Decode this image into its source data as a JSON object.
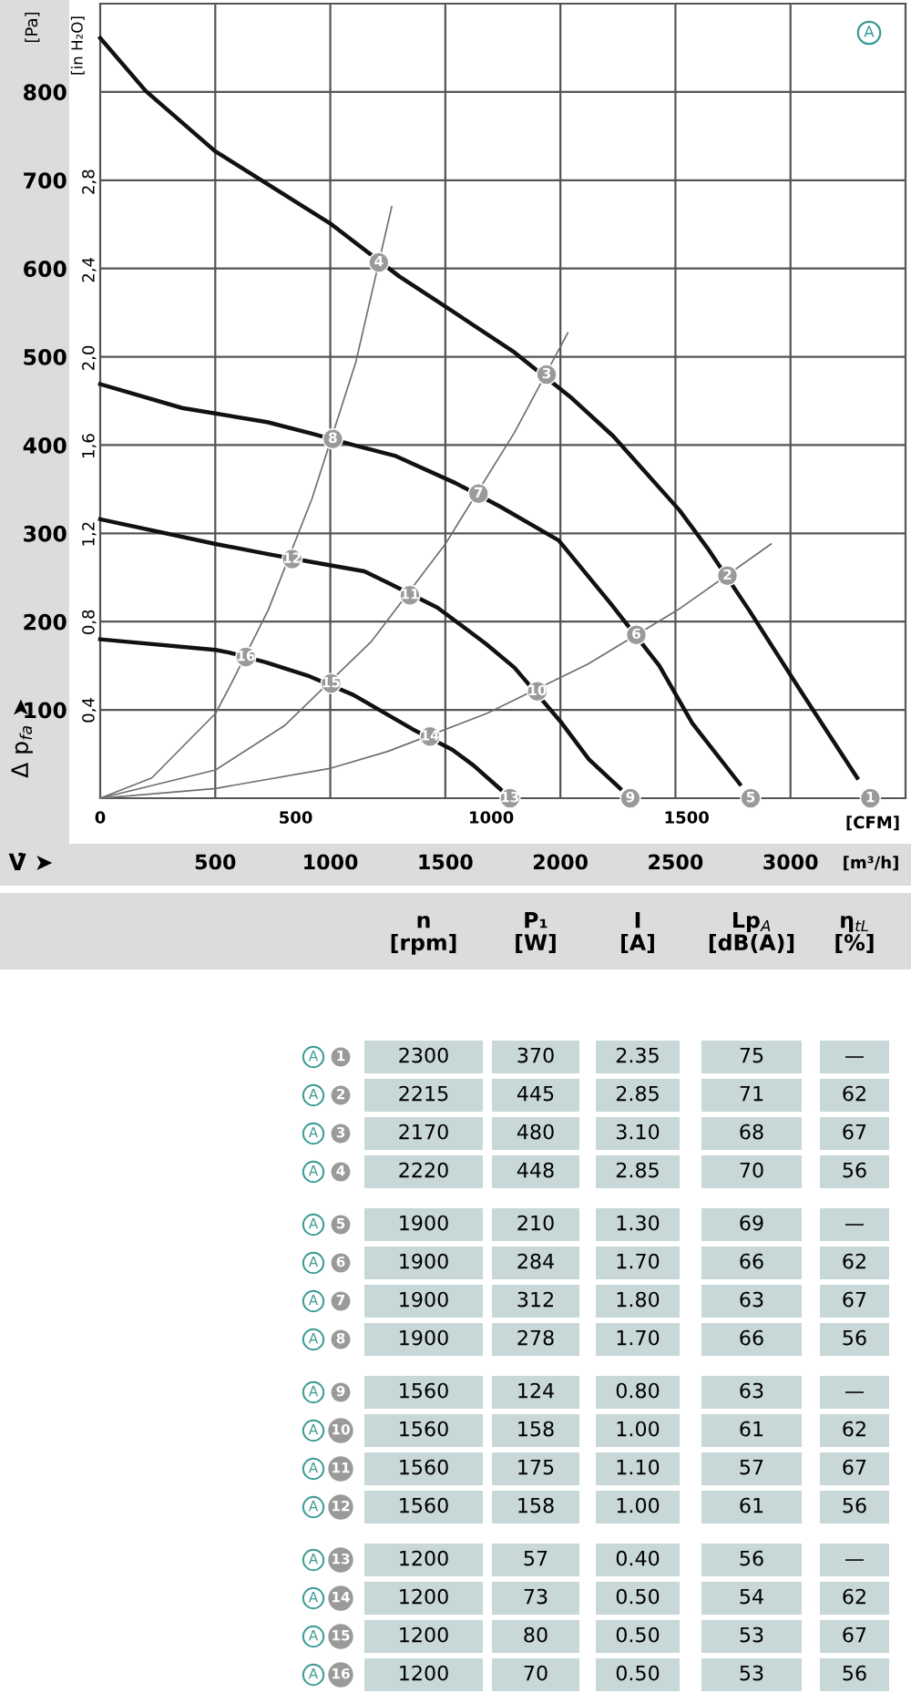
{
  "chart_data": [
    {
      "type": "line",
      "xlabel": "V̇ ➤",
      "ylabel": "Δ p$_{fa}$ ➤",
      "y2label": "[in H₂O]",
      "x2label": "[CFM]",
      "annotations": [
        "[Pa]",
        "[m³/h]",
        "A",
        {
          "text": "1",
          "x": 3347,
          "y": 0
        },
        {
          "text": "2",
          "x": 2726,
          "y": 252
        },
        {
          "text": "3",
          "x": 1940,
          "y": 480
        },
        {
          "text": "4",
          "x": 1211,
          "y": 607
        },
        {
          "text": "5",
          "x": 2827,
          "y": 0
        },
        {
          "text": "6",
          "x": 2330,
          "y": 185
        },
        {
          "text": "7",
          "x": 1644,
          "y": 345
        },
        {
          "text": "8",
          "x": 1011,
          "y": 407
        },
        {
          "text": "9",
          "x": 2304,
          "y": 0
        },
        {
          "text": "10",
          "x": 1900,
          "y": 121
        },
        {
          "text": "11",
          "x": 1346,
          "y": 230
        },
        {
          "text": "12",
          "x": 834,
          "y": 271
        },
        {
          "text": "13",
          "x": 1781,
          "y": 0
        },
        {
          "text": "14",
          "x": 1433,
          "y": 70
        },
        {
          "text": "15",
          "x": 1003,
          "y": 130
        },
        {
          "text": "16",
          "x": 633,
          "y": 160
        }
      ],
      "xlim": [
        0,
        3500
      ],
      "xticks": [
        500,
        1000,
        1500,
        2000,
        2500,
        3000
      ],
      "ylim": [
        0,
        900
      ],
      "yticks": [
        100,
        200,
        300,
        400,
        500,
        600,
        700,
        800
      ],
      "y2lim": [
        0,
        3.61
      ],
      "y2ticks": [
        {
          "value": 0.4,
          "label": "0,4"
        },
        {
          "value": 0.8,
          "label": "0,8"
        },
        {
          "value": 1.2,
          "label": "1,2"
        },
        {
          "value": 1.6,
          "label": "1,6"
        },
        {
          "value": 2.0,
          "label": "2,0"
        },
        {
          "value": 2.4,
          "label": "2,4"
        },
        {
          "value": 2.8,
          "label": "2,8"
        }
      ],
      "x2lim": [
        0,
        2060
      ],
      "x2ticks": [
        0,
        500,
        1000,
        1500
      ],
      "grid": true,
      "series": [
        {
          "color": "#111111",
          "x": [
            0,
            198,
            499,
            1005,
            1120,
            1300,
            1500,
            1800,
            2050,
            2230,
            2518,
            2640,
            2820,
            3048,
            3290
          ],
          "values": [
            861,
            801,
            733,
            650,
            627,
            591,
            557,
            505,
            453,
            410,
            326,
            283,
            213,
            120,
            23
          ]
        },
        {
          "color": "#111111",
          "x": [
            0,
            356,
            726,
            920,
            1100,
            1280,
            1544,
            1740,
            1993,
            2220,
            2430,
            2573,
            2780
          ],
          "values": [
            469,
            442,
            426,
            413,
            400,
            388,
            357,
            330,
            292,
            220,
            150,
            85,
            16
          ]
        },
        {
          "color": "#111111",
          "x": [
            0,
            501,
            740,
            930,
            1148,
            1250,
            1465,
            1676,
            1800,
            2000,
            2124,
            2260
          ],
          "values": [
            316,
            288,
            276,
            267,
            257,
            244,
            216,
            175,
            148,
            87,
            44,
            11
          ]
        },
        {
          "color": "#111111",
          "x": [
            0,
            501,
            560,
            720,
            900,
            1100,
            1359,
            1530,
            1623,
            1740
          ],
          "values": [
            180,
            168,
            165,
            154,
            139,
            117,
            78,
            55,
            37,
            10
          ]
        },
        {
          "color": "#6e6e6e",
          "x": [
            0,
            224,
            501,
            560,
            730,
            920,
            1110,
            1267
          ],
          "values": [
            0,
            23,
            96,
            125,
            213,
            339,
            493,
            670
          ]
        },
        {
          "color": "#6e6e6e",
          "x": [
            0,
            501,
            800,
            1180,
            1500,
            1800,
            2032
          ],
          "values": [
            0,
            32,
            82,
            178,
            288,
            414,
            527
          ]
        },
        {
          "color": "#6e6e6e",
          "x": [
            0,
            501,
            1003,
            1250,
            1680,
            2120,
            2520,
            2916
          ],
          "values": [
            0,
            11,
            34,
            53,
            96,
            152,
            215,
            288
          ]
        },
        {
          "type": "scatter",
          "marker": "circle",
          "color": "#9a9a9a",
          "x": [
            3347,
            2726,
            1940,
            1211,
            2827,
            2330,
            1644,
            1011,
            2304,
            1900,
            1346,
            834,
            1781,
            1433,
            1003,
            633
          ],
          "values": [
            0,
            252,
            480,
            607,
            0,
            185,
            345,
            407,
            0,
            121,
            230,
            271,
            0,
            70,
            130,
            160
          ]
        }
      ]
    },
    {
      "type": "other",
      "categories": [
        "n\n[rpm]",
        "P₁\n[W]",
        "I\n[A]",
        "Lp$_{A}$\n[dB(A)]",
        "η$_{tL}$\n[%]"
      ],
      "y_categories": [
        "1",
        "2",
        "3",
        "4",
        "5",
        "6",
        "7",
        "8",
        "9",
        "10",
        "11",
        "12",
        "13",
        "14",
        "15",
        "16"
      ],
      "y2_categories": [
        "A",
        "A",
        "A",
        "A",
        "A",
        "A",
        "A",
        "A",
        "A",
        "A",
        "A",
        "A",
        "A",
        "A",
        "A",
        "A"
      ],
      "cells": [
        [
          "2300",
          "370",
          "2.35",
          "75",
          "—"
        ],
        [
          "2215",
          "445",
          "2.85",
          "71",
          "62"
        ],
        [
          "2170",
          "480",
          "3.10",
          "68",
          "67"
        ],
        [
          "2220",
          "448",
          "2.85",
          "70",
          "56"
        ],
        [
          "1900",
          "210",
          "1.30",
          "69",
          "—"
        ],
        [
          "1900",
          "284",
          "1.70",
          "66",
          "62"
        ],
        [
          "1900",
          "312",
          "1.80",
          "63",
          "67"
        ],
        [
          "1900",
          "278",
          "1.70",
          "66",
          "56"
        ],
        [
          "1560",
          "124",
          "0.80",
          "63",
          "—"
        ],
        [
          "1560",
          "158",
          "1.00",
          "61",
          "62"
        ],
        [
          "1560",
          "175",
          "1.10",
          "57",
          "67"
        ],
        [
          "1560",
          "158",
          "1.00",
          "61",
          "56"
        ],
        [
          "1200",
          "57",
          "0.40",
          "56",
          "—"
        ],
        [
          "1200",
          "73",
          "0.50",
          "54",
          "62"
        ],
        [
          "1200",
          "80",
          "0.50",
          "53",
          "67"
        ],
        [
          "1200",
          "70",
          "0.50",
          "53",
          "56"
        ]
      ]
    }
  ]
}
